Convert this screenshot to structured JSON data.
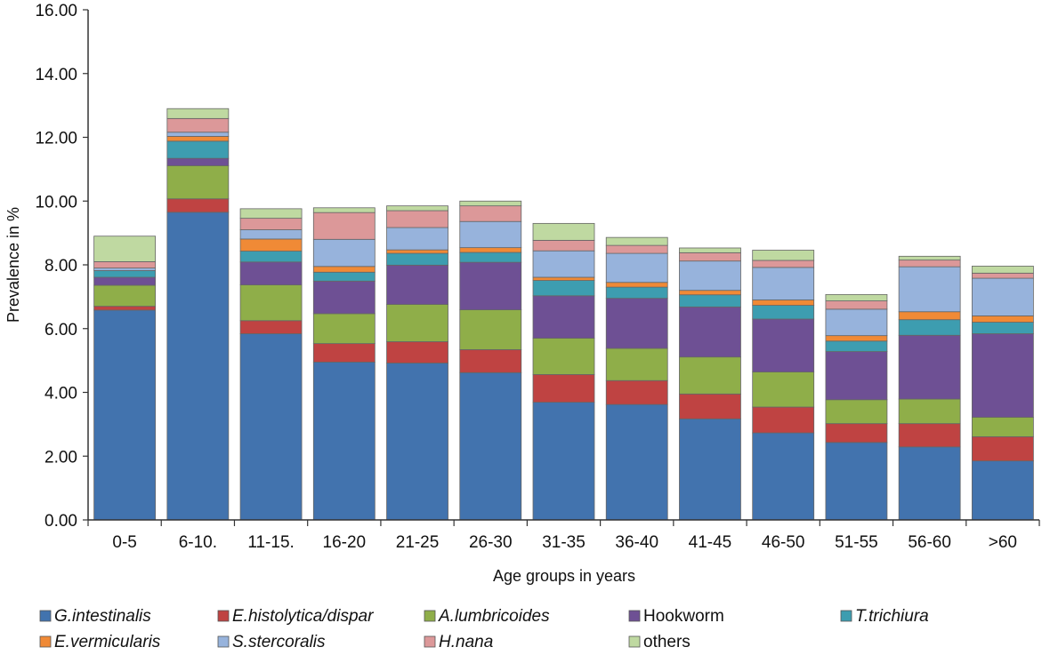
{
  "chart_data": {
    "type": "bar",
    "stacked": true,
    "title": "",
    "xlabel": "Age groups in years",
    "ylabel": "Prevalence in %",
    "ylim": [
      0,
      16
    ],
    "yticks": [
      "0.00",
      "2.00",
      "4.00",
      "6.00",
      "8.00",
      "10.00",
      "12.00",
      "14.00",
      "16.00"
    ],
    "categories": [
      "0-5",
      "6-10.",
      "11-15.",
      "16-20",
      "21-25",
      "26-30",
      "31-35",
      "36-40",
      "41-45",
      "46-50",
      "51-55",
      "56-60",
      ">60"
    ],
    "series": [
      {
        "name": "G.intestinalis",
        "italic": true,
        "color": "#4273ae",
        "values": [
          6.58,
          9.65,
          5.84,
          4.95,
          4.92,
          4.62,
          3.69,
          3.62,
          3.17,
          2.73,
          2.43,
          2.29,
          1.85
        ]
      },
      {
        "name": "E.histolytica/dispar",
        "italic": true,
        "color": "#bf4342",
        "values": [
          0.12,
          0.42,
          0.41,
          0.58,
          0.67,
          0.72,
          0.87,
          0.75,
          0.78,
          0.81,
          0.59,
          0.73,
          0.76
        ]
      },
      {
        "name": "A.lumbricoides",
        "italic": true,
        "color": "#8fae49",
        "values": [
          0.66,
          1.04,
          1.12,
          0.94,
          1.17,
          1.25,
          1.14,
          1.01,
          1.16,
          1.1,
          0.75,
          0.77,
          0.61
        ]
      },
      {
        "name": "Hookworm",
        "italic": false,
        "color": "#6e5094",
        "values": [
          0.25,
          0.23,
          0.72,
          1.02,
          1.23,
          1.49,
          1.33,
          1.57,
          1.57,
          1.66,
          1.51,
          2.0,
          2.62
        ]
      },
      {
        "name": "T.trichiura",
        "italic": true,
        "color": "#3d9db0",
        "values": [
          0.21,
          0.54,
          0.34,
          0.28,
          0.37,
          0.31,
          0.48,
          0.35,
          0.38,
          0.43,
          0.33,
          0.49,
          0.36
        ]
      },
      {
        "name": "E.vermicularis",
        "italic": true,
        "color": "#f08a36",
        "values": [
          0.0,
          0.15,
          0.38,
          0.18,
          0.11,
          0.15,
          0.1,
          0.15,
          0.14,
          0.17,
          0.17,
          0.25,
          0.2
        ]
      },
      {
        "name": "S.stercoralis",
        "italic": true,
        "color": "#97b3dc",
        "values": [
          0.08,
          0.13,
          0.29,
          0.85,
          0.7,
          0.82,
          0.83,
          0.91,
          0.92,
          1.02,
          0.83,
          1.41,
          1.18
        ]
      },
      {
        "name": "H.nana",
        "italic": true,
        "color": "#dc9899",
        "values": [
          0.2,
          0.43,
          0.36,
          0.84,
          0.53,
          0.49,
          0.33,
          0.25,
          0.26,
          0.22,
          0.26,
          0.21,
          0.16
        ]
      },
      {
        "name": "others",
        "italic": false,
        "color": "#bfd9a1",
        "values": [
          0.8,
          0.31,
          0.3,
          0.15,
          0.15,
          0.15,
          0.53,
          0.25,
          0.15,
          0.32,
          0.2,
          0.12,
          0.22
        ]
      }
    ]
  }
}
